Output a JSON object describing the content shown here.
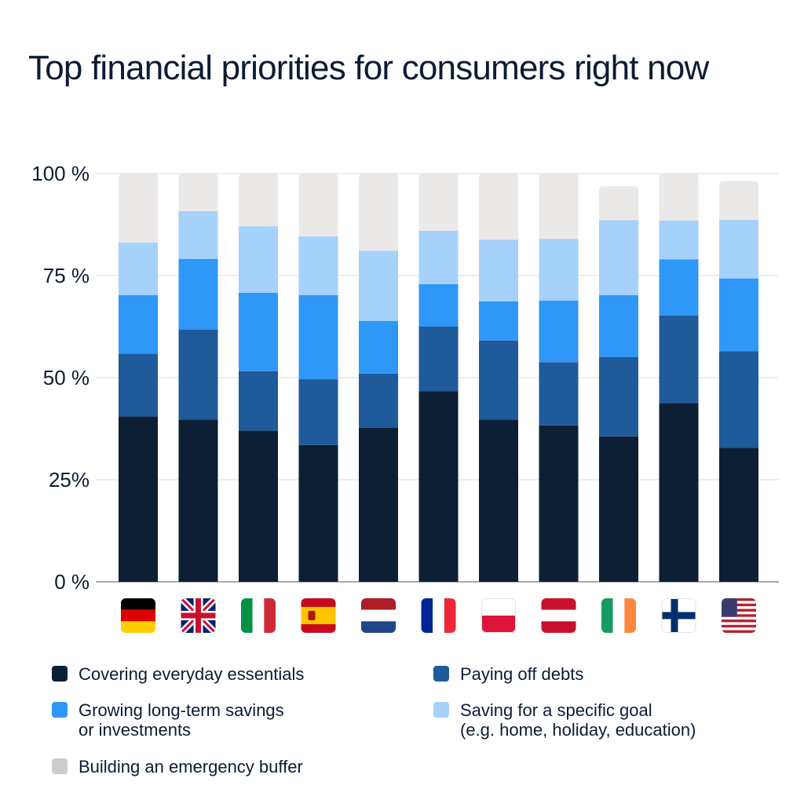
{
  "title": "Top financial priorities for consumers right now",
  "chart_data": {
    "type": "bar",
    "stacked": true,
    "categories": [
      "Germany",
      "United Kingdom",
      "Italy",
      "Spain",
      "Netherlands",
      "France",
      "Poland",
      "Austria",
      "Ireland",
      "Finland",
      "United States"
    ],
    "y_ticks": [
      "100 %",
      "75 %",
      "50 %",
      "25%",
      "0 %"
    ],
    "ylim": [
      0,
      100
    ],
    "grid": true,
    "series": [
      {
        "name": "Covering everyday essentials",
        "color": "#0c1f35",
        "values": [
          40.5,
          39.7,
          37,
          33.5,
          37.7,
          46.7,
          39.7,
          38.3,
          35.6,
          43.8,
          32.8
        ]
      },
      {
        "name": "Paying off debts",
        "color": "#1f5a9a",
        "values": [
          15.4,
          22.1,
          14.6,
          16.1,
          13.3,
          15.8,
          19.4,
          15.5,
          19.4,
          21.4,
          23.7
        ]
      },
      {
        "name": "Growing long-term savings\nor investments",
        "color": "#2f97f7",
        "values": [
          14.3,
          17.3,
          19.2,
          20.6,
          12.9,
          10.4,
          9.6,
          15.1,
          15.2,
          13.8,
          17.8
        ]
      },
      {
        "name": "Saving for a specific goal\n(e.g. home, holiday, education)",
        "color": "#a6d1fb",
        "values": [
          12.9,
          11.7,
          16.3,
          14.4,
          17.2,
          13.1,
          15.1,
          15.1,
          18.4,
          9.5,
          14.4
        ]
      },
      {
        "name": "Building an emergency buffer",
        "color": "#ebe9e8",
        "values": [
          16.9,
          9.2,
          12.9,
          15.4,
          18.9,
          14.0,
          16.2,
          16.0,
          8.3,
          11.5,
          9.5
        ]
      }
    ],
    "legend_color": "#cccccc",
    "legend_position": "bottom"
  },
  "flags": [
    {
      "country": "Germany",
      "icon": "germany-flag-icon"
    },
    {
      "country": "United Kingdom",
      "icon": "uk-flag-icon"
    },
    {
      "country": "Italy",
      "icon": "italy-flag-icon"
    },
    {
      "country": "Spain",
      "icon": "spain-flag-icon"
    },
    {
      "country": "Netherlands",
      "icon": "netherlands-flag-icon"
    },
    {
      "country": "France",
      "icon": "france-flag-icon"
    },
    {
      "country": "Poland",
      "icon": "poland-flag-icon"
    },
    {
      "country": "Austria",
      "icon": "austria-flag-icon"
    },
    {
      "country": "Ireland",
      "icon": "ireland-flag-icon"
    },
    {
      "country": "Finland",
      "icon": "finland-flag-icon"
    },
    {
      "country": "United States",
      "icon": "usa-flag-icon"
    }
  ],
  "legend": {
    "essentials": "Covering everyday essentials",
    "debts": "Paying off debts",
    "savings": "Growing long-term savings\nor investments",
    "goal": "Saving for a specific goal\n(e.g. home, holiday, education)",
    "buffer": "Building an emergency buffer"
  },
  "colors": {
    "essentials": "#0c1f35",
    "debts": "#1f5a9a",
    "savings": "#2f97f7",
    "goal": "#a6d1fb",
    "buffer": "#cccccc"
  }
}
